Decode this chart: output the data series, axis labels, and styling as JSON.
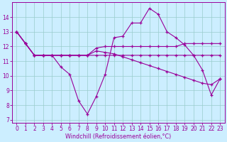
{
  "xlabel": "Windchill (Refroidissement éolien,°C)",
  "background_color": "#cceeff",
  "grid_color": "#99cccc",
  "line_color": "#990099",
  "xlim": [
    -0.5,
    23.5
  ],
  "ylim": [
    6.8,
    15.0
  ],
  "yticks": [
    7,
    8,
    9,
    10,
    11,
    12,
    13,
    14
  ],
  "xticks": [
    0,
    1,
    2,
    3,
    4,
    5,
    6,
    7,
    8,
    9,
    10,
    11,
    12,
    13,
    14,
    15,
    16,
    17,
    18,
    19,
    20,
    21,
    22,
    23
  ],
  "series": [
    [
      13.0,
      12.2,
      11.4,
      11.4,
      11.4,
      10.6,
      10.1,
      8.3,
      7.4,
      8.6,
      10.1,
      12.6,
      12.7,
      13.6,
      13.6,
      14.6,
      14.2,
      13.0,
      12.6,
      12.1,
      11.4,
      10.4,
      8.7,
      9.8
    ],
    [
      13.0,
      12.2,
      11.4,
      11.4,
      11.4,
      11.4,
      11.4,
      11.4,
      11.4,
      11.4,
      11.4,
      11.4,
      11.4,
      11.4,
      11.4,
      11.4,
      11.4,
      11.4,
      11.4,
      11.4,
      11.4,
      11.4,
      11.4,
      11.4
    ],
    [
      13.0,
      12.2,
      11.4,
      11.4,
      11.4,
      11.4,
      11.4,
      11.4,
      11.4,
      11.9,
      12.0,
      12.0,
      12.0,
      12.0,
      12.0,
      12.0,
      12.0,
      12.0,
      12.0,
      12.2,
      12.2,
      12.2,
      12.2,
      12.2
    ],
    [
      13.0,
      12.2,
      11.4,
      11.4,
      11.4,
      11.4,
      11.4,
      11.4,
      11.4,
      11.7,
      11.6,
      11.5,
      11.3,
      11.1,
      10.9,
      10.7,
      10.5,
      10.3,
      10.1,
      9.9,
      9.7,
      9.5,
      9.4,
      9.8
    ]
  ]
}
